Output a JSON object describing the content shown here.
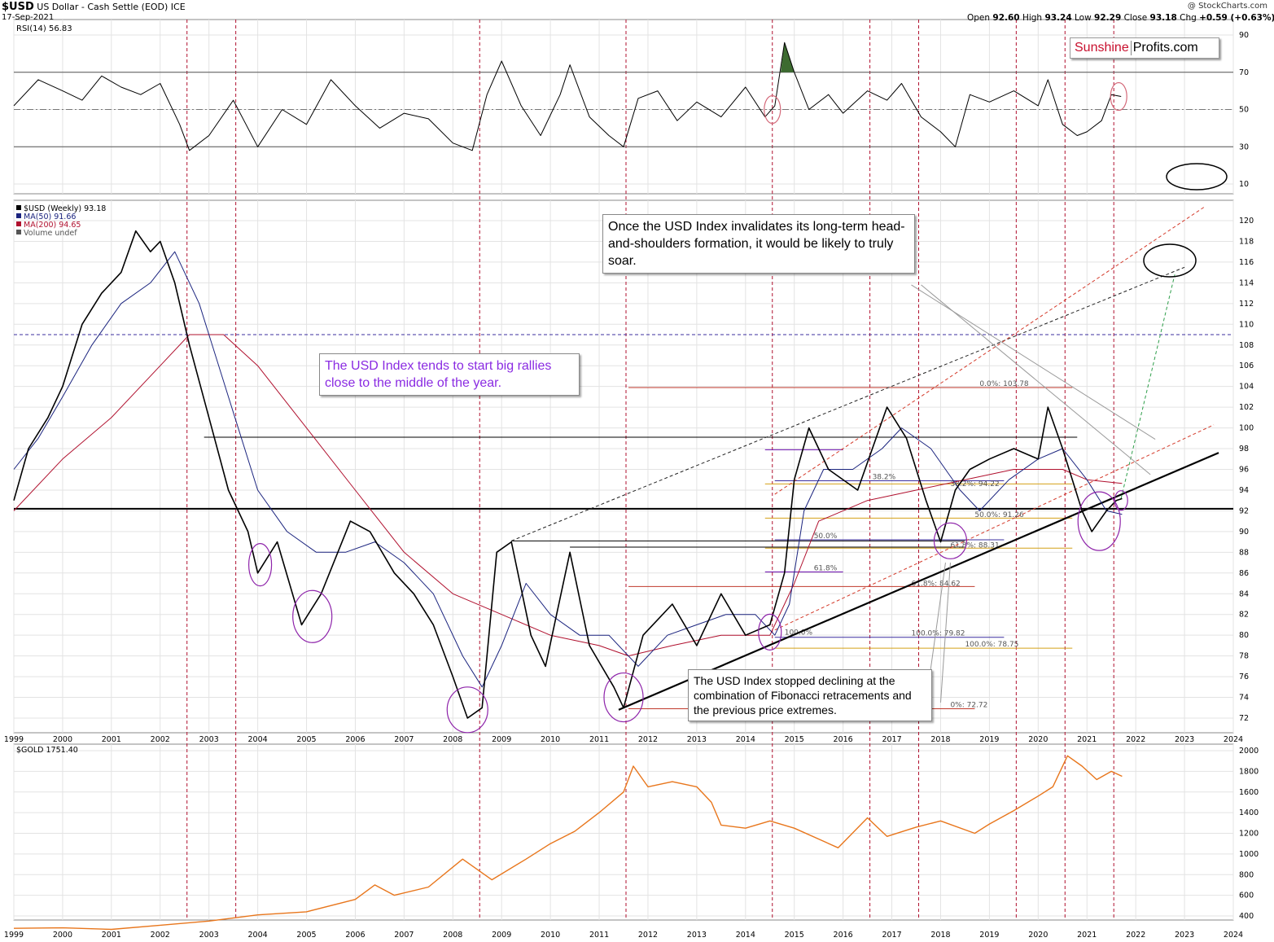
{
  "header": {
    "symbol": "$USD",
    "description": "US Dollar - Cash Settle (EOD) ICE",
    "date": "17-Sep-2021",
    "copyright": "@ StockCharts.com",
    "ohlc": {
      "open_label": "Open",
      "open": "92.60",
      "high_label": "High",
      "high": "93.24",
      "low_label": "Low",
      "low": "92.29",
      "close_label": "Close",
      "close": "93.18",
      "chg_label": "Chg",
      "chg": "+0.59 (+0.63%)"
    }
  },
  "logo": {
    "part1": "Sunshine",
    "part2": "Profits.com"
  },
  "annotations": {
    "hs_note": "Once the USD Index invalidates its long-term head-and-shoulders formation, it would be likely to truly soar.",
    "mid_year_note": "The USD Index tends to start big rallies close to the middle of the year.",
    "fib_note": "The USD Index stopped declining at the combination of Fibonacci retracements and the previous price extremes."
  },
  "colors": {
    "price": "#000000",
    "ma50": "#1a237e",
    "ma200": "#b0102e",
    "gold": "#e8761c",
    "rsi": "#000000",
    "rsi_fill": "#3d6b30",
    "vlines": "#b0102e",
    "fib_purple": "#6a0dad",
    "circle_purple": "#8e24aa",
    "annotation_purple": "#8a2be2"
  },
  "chart_data": [
    {
      "type": "line",
      "title": "RSI(14) 56.83",
      "legend": [
        "RSI(14) 56.83"
      ],
      "ylim": [
        10,
        95
      ],
      "y_ticks": [
        10,
        30,
        50,
        70,
        90
      ],
      "reference_levels": [
        30,
        50,
        70
      ],
      "grid": true,
      "series": [
        {
          "name": "RSI(14) 56.83",
          "x": [
            1999.0,
            1999.5,
            2000.0,
            2000.4,
            2000.8,
            2001.2,
            2001.6,
            2002.0,
            2002.4,
            2002.6,
            2003.0,
            2003.5,
            2004.0,
            2004.5,
            2005.0,
            2005.5,
            2006.0,
            2006.5,
            2007.0,
            2007.5,
            2008.0,
            2008.4,
            2008.7,
            2009.0,
            2009.4,
            2009.8,
            2010.2,
            2010.4,
            2010.8,
            2011.2,
            2011.5,
            2011.8,
            2012.2,
            2012.6,
            2013.0,
            2013.5,
            2014.0,
            2014.4,
            2014.6,
            2014.8,
            2015.0,
            2015.3,
            2015.7,
            2016.0,
            2016.5,
            2016.9,
            2017.2,
            2017.6,
            2018.0,
            2018.3,
            2018.6,
            2019.0,
            2019.5,
            2020.0,
            2020.2,
            2020.5,
            2020.8,
            2021.0,
            2021.3,
            2021.5,
            2021.7
          ],
          "values": [
            52,
            66,
            60,
            55,
            68,
            62,
            58,
            64,
            42,
            28,
            36,
            55,
            30,
            50,
            42,
            66,
            52,
            40,
            48,
            45,
            32,
            28,
            58,
            76,
            52,
            36,
            58,
            74,
            46,
            36,
            30,
            56,
            60,
            44,
            54,
            46,
            62,
            46,
            52,
            86,
            70,
            50,
            58,
            48,
            60,
            55,
            64,
            46,
            38,
            30,
            58,
            54,
            60,
            52,
            66,
            42,
            36,
            38,
            44,
            58,
            57
          ]
        }
      ]
    },
    {
      "type": "line",
      "title": "$USD (Weekly) 93.18",
      "legend": [
        "$USD (Weekly) 93.18",
        "MA(50) 91.66",
        "MA(200) 94.65",
        "Volume undef"
      ],
      "x_ticks": [
        "1999",
        "2000",
        "2001",
        "2002",
        "2003",
        "2004",
        "2005",
        "2006",
        "2007",
        "2008",
        "2009",
        "2010",
        "2011",
        "2012",
        "2013",
        "2014",
        "2015",
        "2016",
        "2017",
        "2018",
        "2019",
        "2020",
        "2021",
        "2022",
        "2023",
        "2024"
      ],
      "y_ticks": [
        72,
        74,
        76,
        78,
        80,
        82,
        84,
        86,
        88,
        90,
        92,
        94,
        96,
        98,
        100,
        102,
        104,
        106,
        108,
        110,
        112,
        114,
        116,
        118,
        120
      ],
      "ylim": [
        71,
        121
      ],
      "xlim": [
        1999,
        2024
      ],
      "grid": true,
      "series": [
        {
          "name": "$USD (Weekly) 93.18",
          "x": [
            1999.0,
            1999.3,
            1999.7,
            2000.0,
            2000.4,
            2000.8,
            2001.2,
            2001.5,
            2001.8,
            2002.0,
            2002.3,
            2002.6,
            2003.0,
            2003.4,
            2003.8,
            2004.0,
            2004.4,
            2004.9,
            2005.3,
            2005.9,
            2006.3,
            2006.8,
            2007.2,
            2007.6,
            2008.0,
            2008.3,
            2008.6,
            2008.9,
            2009.2,
            2009.6,
            2009.9,
            2010.4,
            2010.8,
            2011.3,
            2011.5,
            2011.9,
            2012.5,
            2013.0,
            2013.5,
            2014.0,
            2014.5,
            2014.8,
            2015.0,
            2015.3,
            2015.7,
            2016.3,
            2016.9,
            2017.3,
            2017.7,
            2018.0,
            2018.3,
            2018.6,
            2019.0,
            2019.5,
            2020.0,
            2020.2,
            2020.5,
            2020.9,
            2021.1,
            2021.4,
            2021.6,
            2021.72
          ],
          "values": [
            93,
            98,
            101,
            104,
            110,
            113,
            115,
            119,
            117,
            118,
            114,
            108,
            101,
            94,
            90,
            86,
            89,
            81,
            84,
            91,
            90,
            86,
            84,
            81,
            76,
            72,
            73,
            88,
            89,
            80,
            77,
            88,
            79,
            75,
            73,
            80,
            83,
            79,
            84,
            80,
            81,
            86,
            95,
            100,
            96,
            94,
            102,
            99,
            93,
            89,
            94,
            96,
            97,
            98,
            97,
            102,
            98,
            92,
            90,
            92,
            93,
            93.18
          ]
        },
        {
          "name": "MA(50) 91.66",
          "x": [
            1999.0,
            1999.5,
            2000.0,
            2000.6,
            2001.2,
            2001.8,
            2002.3,
            2002.8,
            2003.4,
            2004.0,
            2004.6,
            2005.2,
            2005.8,
            2006.4,
            2007.0,
            2007.6,
            2008.2,
            2008.6,
            2009.0,
            2009.5,
            2010.0,
            2010.6,
            2011.2,
            2011.8,
            2012.4,
            2013.0,
            2013.6,
            2014.2,
            2014.6,
            2014.9,
            2015.2,
            2015.6,
            2016.2,
            2016.8,
            2017.2,
            2017.8,
            2018.4,
            2018.8,
            2019.4,
            2020.0,
            2020.5,
            2021.0,
            2021.4,
            2021.72
          ],
          "values": [
            96,
            99,
            103,
            108,
            112,
            114,
            117,
            112,
            103,
            94,
            90,
            88,
            88,
            89,
            87,
            84,
            78,
            75,
            79,
            85,
            82,
            80,
            80,
            77,
            80,
            81,
            82,
            82,
            80,
            83,
            92,
            96,
            96,
            98,
            100,
            98,
            94,
            92,
            95,
            97,
            98,
            95,
            92,
            91.66
          ]
        },
        {
          "name": "MA(200) 94.65",
          "x": [
            1999.0,
            2000.0,
            2001.0,
            2002.0,
            2002.6,
            2003.3,
            2004.0,
            2005.0,
            2006.0,
            2007.0,
            2008.0,
            2009.0,
            2010.0,
            2011.0,
            2011.6,
            2012.5,
            2013.5,
            2014.5,
            2015.0,
            2015.5,
            2016.5,
            2017.5,
            2018.5,
            2019.5,
            2020.5,
            2021.0,
            2021.72
          ],
          "values": [
            92,
            97,
            101,
            106,
            109,
            109,
            106,
            100,
            94,
            88,
            84,
            82,
            80,
            79,
            78,
            79,
            80,
            80,
            85,
            91,
            93,
            94,
            95,
            96,
            96,
            95,
            94.65
          ]
        }
      ]
    },
    {
      "type": "line",
      "title": "$GOLD 1751.40",
      "legend": [
        "$GOLD 1751.40"
      ],
      "y_ticks": [
        400,
        600,
        800,
        1000,
        1200,
        1400,
        1600,
        1800,
        2000
      ],
      "ylim": [
        250,
        2080
      ],
      "x_ticks": [
        "1999",
        "2000",
        "2001",
        "2002",
        "2003",
        "2004",
        "2005",
        "2006",
        "2007",
        "2008",
        "2009",
        "2010",
        "2011",
        "2012",
        "2013",
        "2014",
        "2015",
        "2016",
        "2017",
        "2018",
        "2019",
        "2020",
        "2021",
        "2022",
        "2023",
        "2024"
      ],
      "grid": true,
      "series": [
        {
          "name": "$GOLD 1751.40",
          "x": [
            1999.0,
            2000.0,
            2001.0,
            2002.0,
            2003.0,
            2004.0,
            2005.0,
            2006.0,
            2006.4,
            2006.8,
            2007.5,
            2008.2,
            2008.8,
            2009.5,
            2010.0,
            2010.5,
            2011.0,
            2011.5,
            2011.7,
            2012.0,
            2012.5,
            2013.0,
            2013.3,
            2013.5,
            2014.0,
            2014.5,
            2015.0,
            2015.9,
            2016.5,
            2016.9,
            2017.5,
            2018.0,
            2018.7,
            2019.0,
            2019.5,
            2020.0,
            2020.3,
            2020.6,
            2020.9,
            2021.2,
            2021.5,
            2021.72
          ],
          "values": [
            280,
            285,
            270,
            310,
            350,
            410,
            440,
            560,
            700,
            600,
            680,
            950,
            750,
            950,
            1100,
            1220,
            1400,
            1600,
            1850,
            1650,
            1700,
            1650,
            1500,
            1280,
            1250,
            1320,
            1250,
            1060,
            1350,
            1170,
            1260,
            1320,
            1200,
            1290,
            1420,
            1560,
            1650,
            1950,
            1850,
            1720,
            1800,
            1751.4
          ]
        }
      ]
    }
  ],
  "fib_labels": {
    "top_label": "0.0%: 103.78",
    "r382": "38.2%: 94.22",
    "r50": "50.0%: 91.26",
    "r618a": "61.8%: 88.31",
    "r618b": "61.8%: 84.62",
    "r100a": "100.0%: 79.82",
    "r100b": "100.0%: 78.75",
    "r_small_50": "50.0%",
    "r_small_618": "61.8%",
    "r_small_100": "100.0%",
    "r_small_382": "38.2%",
    "r_partial": "0%: 72.72"
  }
}
